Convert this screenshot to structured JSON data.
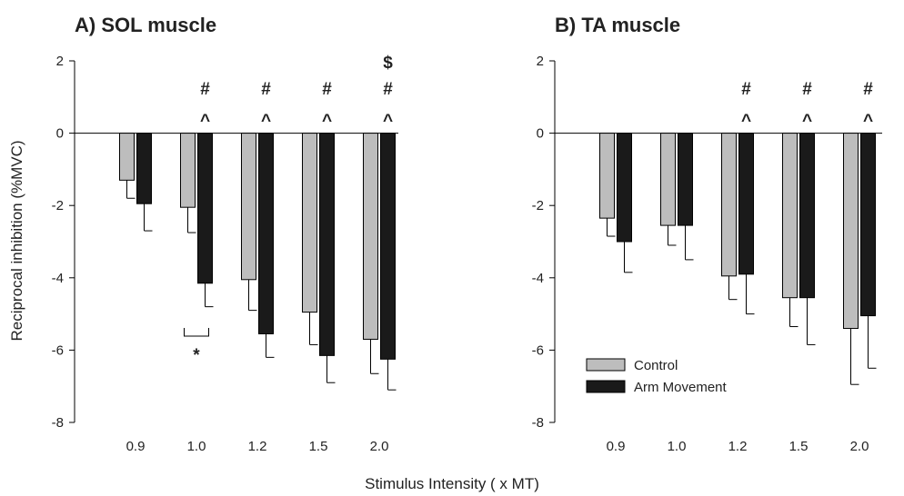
{
  "figure": {
    "ylabel": "Reciprocal inhibition (%MVC)",
    "xlabel": "Stimulus Intensity ( x MT)"
  },
  "legend": {
    "items": [
      {
        "label": "Control",
        "color": "#bdbdbd"
      },
      {
        "label": "Arm Movement",
        "color": "#1a1a1a"
      }
    ]
  },
  "chart_data": [
    {
      "type": "bar",
      "title": "A) SOL muscle",
      "categories": [
        "0.9",
        "1.0",
        "1.2",
        "1.5",
        "2.0"
      ],
      "ylim": [
        -8,
        2
      ],
      "yticks": [
        2,
        0,
        -2,
        -4,
        -6,
        -8
      ],
      "series": [
        {
          "name": "Control",
          "values": [
            -1.3,
            -2.05,
            -4.05,
            -4.95,
            -5.7
          ],
          "errors": [
            0.5,
            0.7,
            0.85,
            0.9,
            0.95
          ]
        },
        {
          "name": "Arm Movement",
          "values": [
            -1.95,
            -4.15,
            -5.55,
            -6.15,
            -6.25
          ],
          "errors": [
            0.75,
            0.65,
            0.65,
            0.75,
            0.85
          ]
        }
      ],
      "annotations": [
        {
          "category": "1.0",
          "marks": [
            "#",
            "^"
          ]
        },
        {
          "category": "1.2",
          "marks": [
            "#",
            "^"
          ]
        },
        {
          "category": "1.5",
          "marks": [
            "#",
            "^"
          ]
        },
        {
          "category": "2.0",
          "marks": [
            "$",
            "#",
            "^"
          ]
        }
      ],
      "comparison": {
        "category": "1.0",
        "mark": "*"
      }
    },
    {
      "type": "bar",
      "title": "B) TA muscle",
      "categories": [
        "0.9",
        "1.0",
        "1.2",
        "1.5",
        "2.0"
      ],
      "ylim": [
        -8,
        2
      ],
      "yticks": [
        2,
        0,
        -2,
        -4,
        -6,
        -8
      ],
      "series": [
        {
          "name": "Control",
          "values": [
            -2.35,
            -2.55,
            -3.95,
            -4.55,
            -5.4
          ],
          "errors": [
            0.5,
            0.55,
            0.65,
            0.8,
            1.55
          ]
        },
        {
          "name": "Arm Movement",
          "values": [
            -3.0,
            -2.55,
            -3.9,
            -4.55,
            -5.05
          ],
          "errors": [
            0.85,
            0.95,
            1.1,
            1.3,
            1.45
          ]
        }
      ],
      "annotations": [
        {
          "category": "1.2",
          "marks": [
            "#",
            "^"
          ]
        },
        {
          "category": "1.5",
          "marks": [
            "#",
            "^"
          ]
        },
        {
          "category": "2.0",
          "marks": [
            "#",
            "^"
          ]
        }
      ]
    }
  ]
}
